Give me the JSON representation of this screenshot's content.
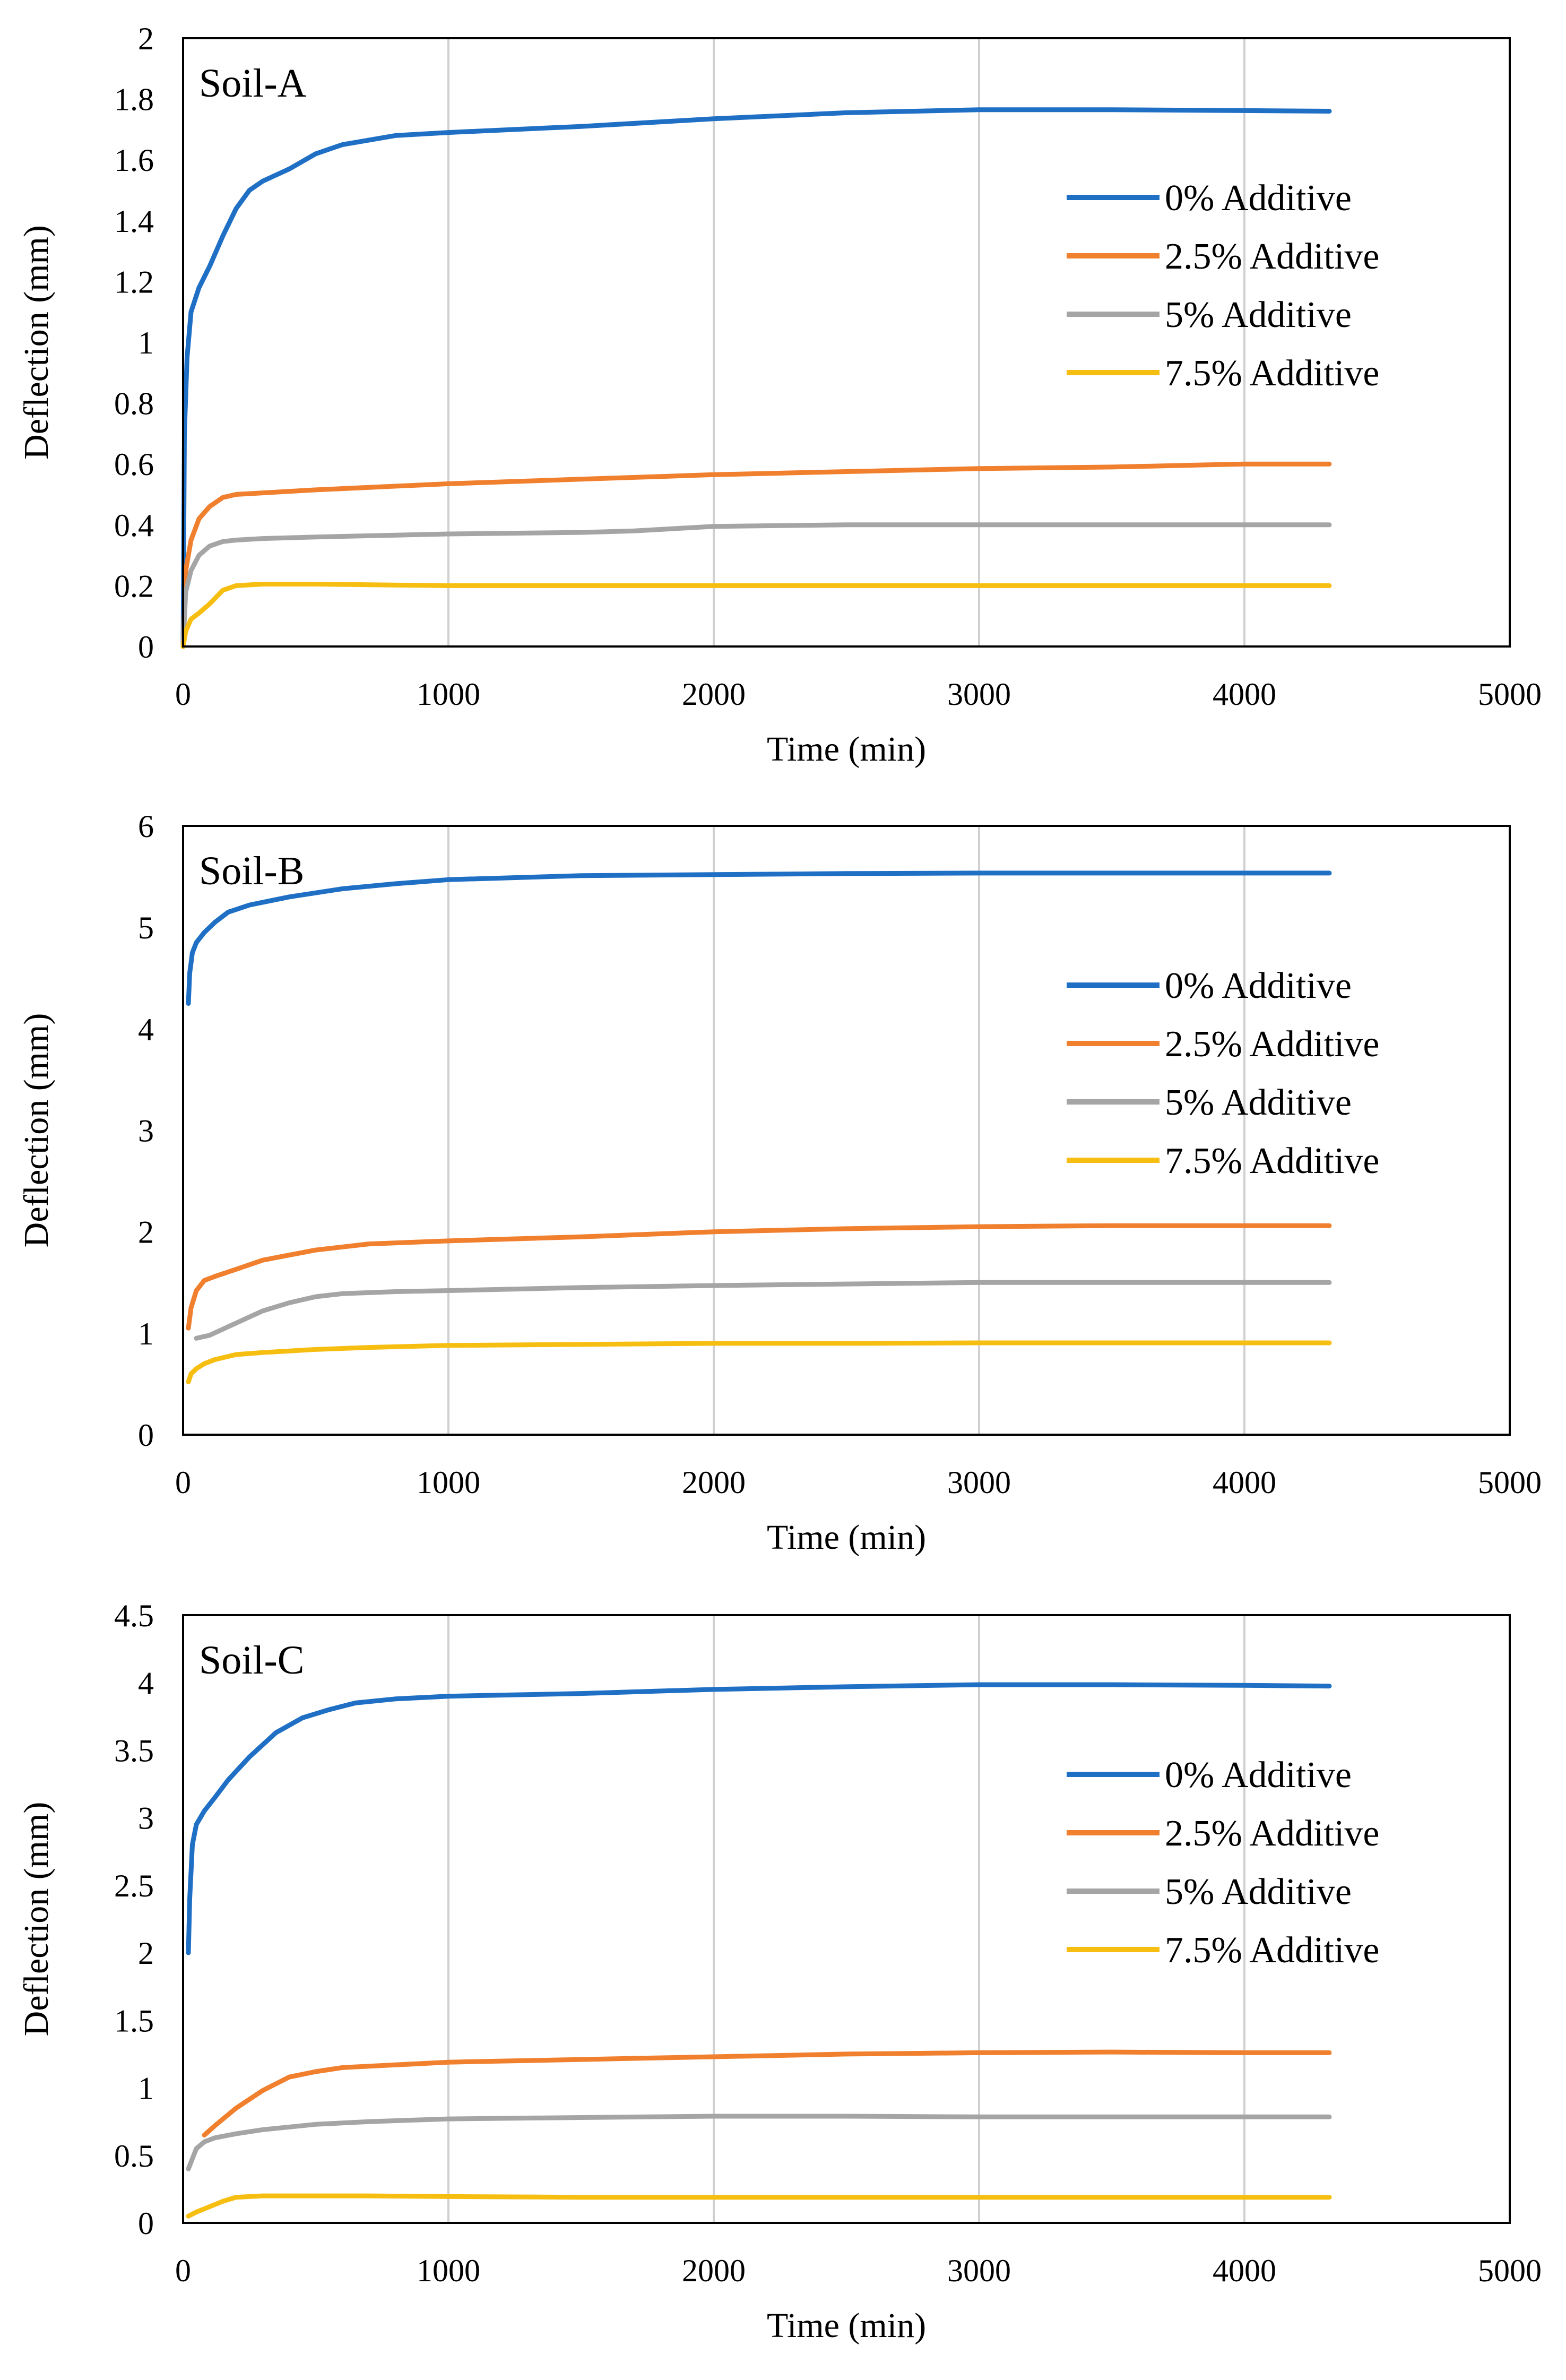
{
  "chart_data": [
    {
      "type": "line",
      "title": "Soil-A",
      "xlabel": "Time (min)",
      "ylabel": "Deflection (mm)",
      "xlim": [
        0,
        5000
      ],
      "ylim": [
        0,
        2
      ],
      "xticks": [
        0,
        1000,
        2000,
        3000,
        4000,
        5000
      ],
      "yticks": [
        0,
        0.2,
        0.4,
        0.6,
        0.8,
        1,
        1.2,
        1.4,
        1.6,
        1.8,
        2
      ],
      "grid": "vertical",
      "legend_position": "right",
      "series": [
        {
          "name": "0% Additive",
          "color": "#1F6FC5",
          "x": [
            0,
            5,
            15,
            30,
            60,
            100,
            150,
            200,
            250,
            300,
            400,
            500,
            600,
            800,
            1000,
            1500,
            2000,
            2500,
            3000,
            3500,
            4000,
            4320
          ],
          "y": [
            0,
            0.7,
            0.95,
            1.1,
            1.18,
            1.25,
            1.35,
            1.44,
            1.5,
            1.53,
            1.57,
            1.62,
            1.65,
            1.68,
            1.69,
            1.71,
            1.735,
            1.755,
            1.765,
            1.765,
            1.762,
            1.76
          ]
        },
        {
          "name": "2.5% Additive",
          "color": "#F07F2E",
          "x": [
            0,
            10,
            30,
            60,
            100,
            150,
            200,
            300,
            500,
            1000,
            1500,
            2000,
            2500,
            3000,
            3500,
            4000,
            4320
          ],
          "y": [
            0,
            0.25,
            0.35,
            0.42,
            0.46,
            0.49,
            0.5,
            0.505,
            0.515,
            0.535,
            0.55,
            0.565,
            0.575,
            0.585,
            0.59,
            0.6,
            0.6
          ]
        },
        {
          "name": "5% Additive",
          "color": "#A5A5A5",
          "x": [
            0,
            10,
            30,
            60,
            100,
            150,
            200,
            300,
            500,
            1000,
            1500,
            1700,
            2000,
            2500,
            3000,
            3500,
            4000,
            4320
          ],
          "y": [
            0,
            0.18,
            0.25,
            0.3,
            0.33,
            0.345,
            0.35,
            0.355,
            0.36,
            0.37,
            0.375,
            0.38,
            0.395,
            0.4,
            0.4,
            0.4,
            0.4,
            0.4
          ]
        },
        {
          "name": "7.5% Additive",
          "color": "#F7BE12",
          "x": [
            0,
            10,
            30,
            60,
            100,
            150,
            200,
            300,
            500,
            1000,
            1500,
            2000,
            2500,
            3000,
            3500,
            4000,
            4320
          ],
          "y": [
            0,
            0.05,
            0.09,
            0.11,
            0.14,
            0.185,
            0.2,
            0.205,
            0.205,
            0.2,
            0.2,
            0.2,
            0.2,
            0.2,
            0.2,
            0.2,
            0.2
          ]
        }
      ]
    },
    {
      "type": "line",
      "title": "Soil-B",
      "xlabel": "Time (min)",
      "ylabel": "Deflection (mm)",
      "xlim": [
        0,
        5000
      ],
      "ylim": [
        0,
        6
      ],
      "xticks": [
        0,
        1000,
        2000,
        3000,
        4000,
        5000
      ],
      "yticks": [
        0,
        1,
        2,
        3,
        4,
        5,
        6
      ],
      "grid": "vertical",
      "legend_position": "right",
      "series": [
        {
          "name": "0% Additive",
          "color": "#1F6FC5",
          "x": [
            20,
            25,
            35,
            50,
            80,
            120,
            170,
            250,
            400,
            600,
            800,
            1000,
            1500,
            2000,
            2500,
            3000,
            3500,
            4000,
            4320
          ],
          "y": [
            4.25,
            4.55,
            4.75,
            4.85,
            4.95,
            5.05,
            5.15,
            5.22,
            5.3,
            5.38,
            5.43,
            5.47,
            5.51,
            5.52,
            5.53,
            5.535,
            5.535,
            5.535,
            5.535
          ]
        },
        {
          "name": "2.5% Additive",
          "color": "#F07F2E",
          "x": [
            20,
            30,
            50,
            80,
            120,
            200,
            300,
            500,
            700,
            1000,
            1500,
            2000,
            2500,
            3000,
            3500,
            4000,
            4320
          ],
          "y": [
            1.05,
            1.25,
            1.42,
            1.52,
            1.56,
            1.63,
            1.72,
            1.82,
            1.88,
            1.91,
            1.95,
            2.0,
            2.03,
            2.05,
            2.06,
            2.06,
            2.06
          ]
        },
        {
          "name": "5% Additive",
          "color": "#A5A5A5",
          "x": [
            50,
            100,
            200,
            300,
            400,
            500,
            600,
            800,
            1000,
            1500,
            2000,
            2500,
            3000,
            3500,
            4000,
            4320
          ],
          "y": [
            0.95,
            0.98,
            1.1,
            1.22,
            1.3,
            1.36,
            1.39,
            1.41,
            1.42,
            1.45,
            1.47,
            1.485,
            1.5,
            1.5,
            1.5,
            1.5
          ]
        },
        {
          "name": "7.5% Additive",
          "color": "#F7BE12",
          "x": [
            20,
            30,
            50,
            80,
            120,
            200,
            300,
            500,
            700,
            1000,
            1500,
            2000,
            2500,
            3000,
            3500,
            4000,
            4320
          ],
          "y": [
            0.52,
            0.6,
            0.65,
            0.7,
            0.74,
            0.79,
            0.81,
            0.84,
            0.86,
            0.88,
            0.89,
            0.9,
            0.9,
            0.905,
            0.905,
            0.905,
            0.905
          ]
        }
      ]
    },
    {
      "type": "line",
      "title": "Soil-C",
      "xlabel": "Time (min)",
      "ylabel": "Deflection (mm)",
      "xlim": [
        0,
        5000
      ],
      "ylim": [
        0,
        4.5
      ],
      "xticks": [
        0,
        1000,
        2000,
        3000,
        4000,
        5000
      ],
      "yticks": [
        0,
        0.5,
        1,
        1.5,
        2,
        2.5,
        3,
        3.5,
        4,
        4.5
      ],
      "grid": "vertical",
      "legend_position": "right",
      "series": [
        {
          "name": "0% Additive",
          "color": "#1F6FC5",
          "x": [
            20,
            25,
            35,
            50,
            80,
            120,
            170,
            250,
            350,
            450,
            550,
            650,
            800,
            1000,
            1500,
            2000,
            2500,
            3000,
            3500,
            4000,
            4320
          ],
          "y": [
            2.0,
            2.4,
            2.8,
            2.95,
            3.05,
            3.15,
            3.28,
            3.45,
            3.63,
            3.74,
            3.8,
            3.85,
            3.88,
            3.9,
            3.92,
            3.95,
            3.97,
            3.985,
            3.985,
            3.98,
            3.975
          ]
        },
        {
          "name": "2.5% Additive",
          "color": "#F07F2E",
          "x": [
            80,
            120,
            200,
            300,
            400,
            500,
            600,
            800,
            1000,
            1500,
            2000,
            2500,
            3000,
            3500,
            4000,
            4320
          ],
          "y": [
            0.65,
            0.72,
            0.85,
            0.98,
            1.08,
            1.12,
            1.15,
            1.17,
            1.19,
            1.21,
            1.23,
            1.25,
            1.26,
            1.265,
            1.26,
            1.26
          ]
        },
        {
          "name": "5% Additive",
          "color": "#A5A5A5",
          "x": [
            20,
            30,
            50,
            80,
            120,
            200,
            300,
            500,
            700,
            1000,
            1500,
            2000,
            2500,
            3000,
            3500,
            4000,
            4320
          ],
          "y": [
            0.4,
            0.45,
            0.55,
            0.6,
            0.63,
            0.66,
            0.69,
            0.73,
            0.75,
            0.77,
            0.78,
            0.79,
            0.79,
            0.785,
            0.785,
            0.785,
            0.785
          ]
        },
        {
          "name": "7.5% Additive",
          "color": "#F7BE12",
          "x": [
            20,
            50,
            100,
            150,
            200,
            300,
            500,
            700,
            1000,
            1500,
            2000,
            2500,
            3000,
            3500,
            4000,
            4320
          ],
          "y": [
            0.05,
            0.08,
            0.12,
            0.16,
            0.19,
            0.2,
            0.2,
            0.2,
            0.195,
            0.19,
            0.19,
            0.19,
            0.19,
            0.19,
            0.19,
            0.19
          ]
        }
      ]
    }
  ]
}
